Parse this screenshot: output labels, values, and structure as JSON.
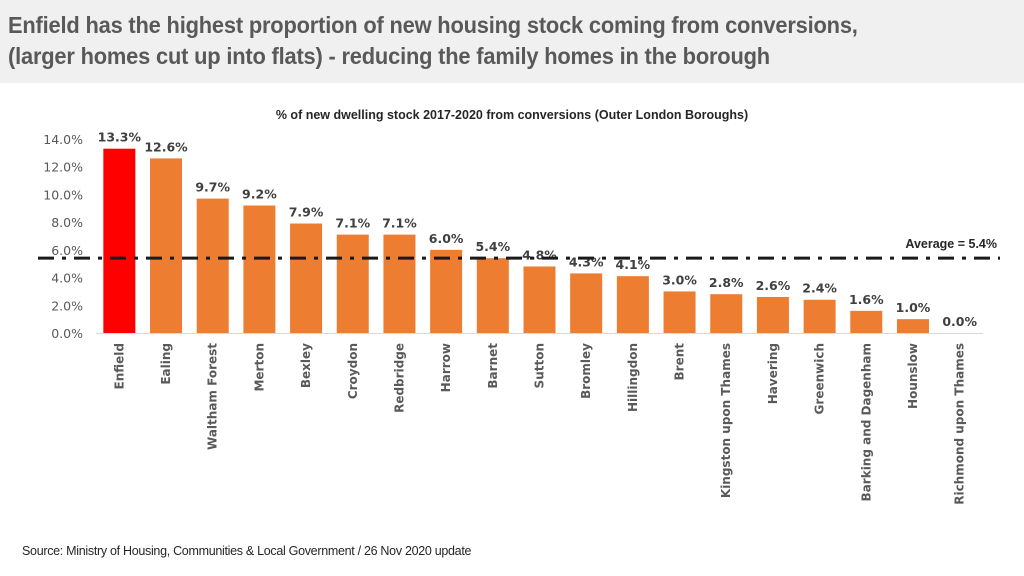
{
  "headline": {
    "line1": "Enfield has the highest proportion of new housing stock coming from conversions,",
    "line2": "(larger homes cut up into flats) - reducing the family homes in the borough"
  },
  "source": "Source: Ministry of Housing, Communities & Local Government / 26 Nov 2020 update",
  "chart_data": {
    "type": "bar",
    "title": "% of new dwelling stock 2017-2020 from conversions (Outer London Boroughs)",
    "xlabel": "",
    "ylabel": "",
    "ylim": [
      0,
      14
    ],
    "yticks": [
      "0.0%",
      "2.0%",
      "4.0%",
      "6.0%",
      "8.0%",
      "10.0%",
      "12.0%",
      "14.0%"
    ],
    "ytick_values": [
      0,
      2,
      4,
      6,
      8,
      10,
      12,
      14
    ],
    "grid": false,
    "categories": [
      "Enfield",
      "Ealing",
      "Waltham Forest",
      "Merton",
      "Bexley",
      "Croydon",
      "Redbridge",
      "Harrow",
      "Barnet",
      "Sutton",
      "Bromley",
      "Hillingdon",
      "Brent",
      "Kingston upon Thames",
      "Havering",
      "Greenwich",
      "Barking and Dagenham",
      "Hounslow",
      "Richmond upon Thames"
    ],
    "values": [
      13.3,
      12.6,
      9.7,
      9.2,
      7.9,
      7.1,
      7.1,
      6.0,
      5.4,
      4.8,
      4.3,
      4.1,
      3.0,
      2.8,
      2.6,
      2.4,
      1.6,
      1.0,
      0.0
    ],
    "data_labels": [
      "13.3%",
      "12.6%",
      "9.7%",
      "9.2%",
      "7.9%",
      "7.1%",
      "7.1%",
      "6.0%",
      "5.4%",
      "4.8%",
      "4.3%",
      "4.1%",
      "3.0%",
      "2.8%",
      "2.6%",
      "2.4%",
      "1.6%",
      "1.0%",
      "0.0%"
    ],
    "highlight_index": 0,
    "colors": {
      "default": "#ed7d31",
      "highlight": "#ff0000",
      "average_line": "#1a1a1a"
    },
    "average": {
      "value": 5.4,
      "label": "Average = 5.4%"
    }
  }
}
